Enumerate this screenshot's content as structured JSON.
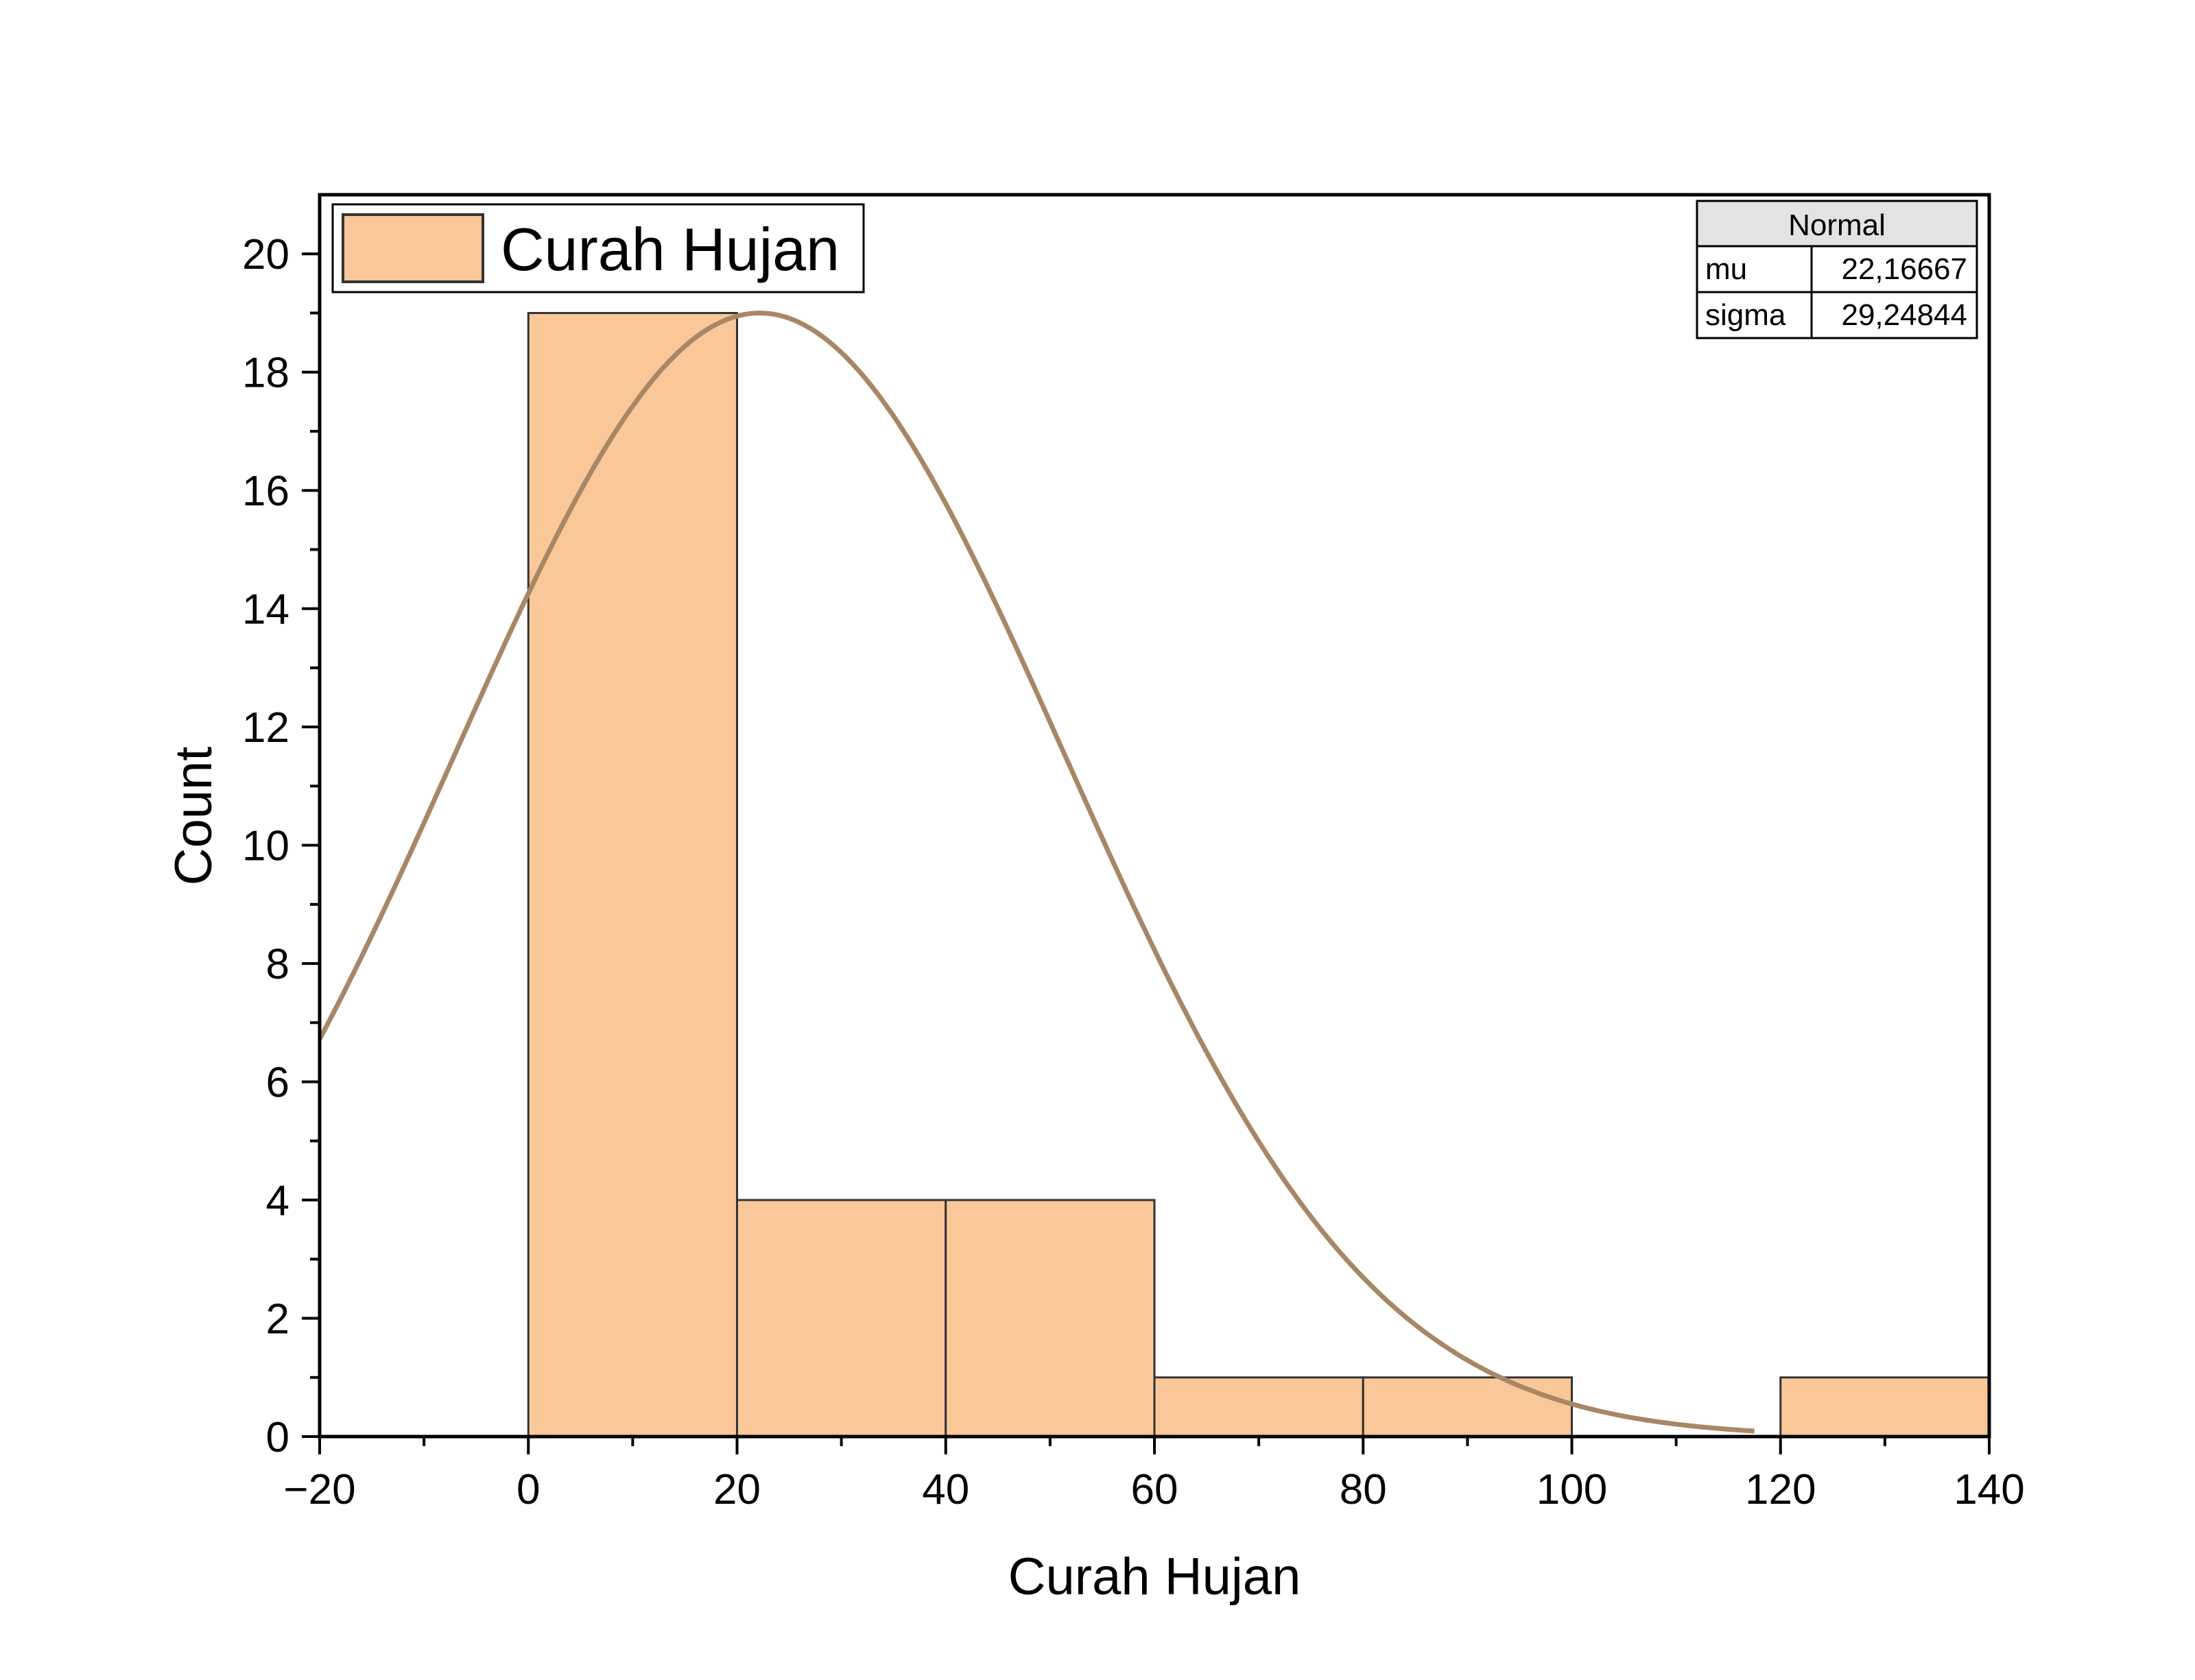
{
  "chart_data": {
    "type": "bar",
    "title": "",
    "xlabel": "Curah Hujan",
    "ylabel": "Count",
    "xlim": [
      -20,
      140
    ],
    "ylim": [
      0,
      21
    ],
    "x_ticks": [
      -20,
      0,
      20,
      40,
      60,
      80,
      100,
      120,
      140
    ],
    "x_tick_labels": [
      "−20",
      "0",
      "20",
      "40",
      "60",
      "80",
      "100",
      "120",
      "140"
    ],
    "y_ticks": [
      0,
      2,
      4,
      6,
      8,
      10,
      12,
      14,
      16,
      18,
      20
    ],
    "y_tick_labels": [
      "0",
      "2",
      "4",
      "6",
      "8",
      "10",
      "12",
      "14",
      "16",
      "18",
      "20"
    ],
    "bins": [
      {
        "start": 0,
        "end": 20,
        "count": 19
      },
      {
        "start": 20,
        "end": 40,
        "count": 4
      },
      {
        "start": 40,
        "end": 60,
        "count": 4
      },
      {
        "start": 60,
        "end": 80,
        "count": 1
      },
      {
        "start": 80,
        "end": 100,
        "count": 1
      },
      {
        "start": 100,
        "end": 120,
        "count": 0
      },
      {
        "start": 120,
        "end": 140,
        "count": 1
      }
    ],
    "series": [
      {
        "name": "Curah Hujan",
        "color": "#fac898",
        "edge_color": "#333333"
      }
    ],
    "fit": {
      "type": "normal",
      "mu": 22.16667,
      "sigma": 29.24844,
      "peak": 19,
      "x_range": [
        -20,
        117.5
      ],
      "color": "#a88766"
    },
    "legend": {
      "position": "top-left",
      "label": "Curah Hujan"
    },
    "stats_table": {
      "title": "Normal",
      "rows": [
        {
          "label": "mu",
          "value": "22,16667"
        },
        {
          "label": "sigma",
          "value": "29,24844"
        }
      ]
    },
    "grid": false
  }
}
